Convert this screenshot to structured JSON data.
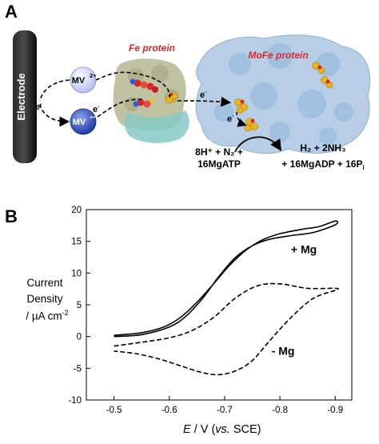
{
  "panels": {
    "a": "A",
    "b": "B"
  },
  "scheme": {
    "electrode": "Electrode",
    "fe_protein": "Fe protein",
    "mofe_protein": "MoFe protein",
    "mv_ox": "MV",
    "mv_ox_charge": "2+",
    "mv_red": "MV",
    "mv_red_charge": "+•",
    "electron": "e",
    "electron_sup": "-",
    "reactants_line1": "8H⁺ + N₂ +",
    "reactants_line2": "16MgATP",
    "products_line1": "H₂ + 2NH₃",
    "products_line2": "+ 16MgADP + 16P",
    "products_sub": "i",
    "colors": {
      "fe_label": "#d62a2a",
      "mofe_label": "#d62a2a",
      "mofe_surface": "#aac6e2",
      "fe_surface": "#b9bd98",
      "fe_surface2": "#86c9c4",
      "mv_fill": "#b6bff2",
      "mv_red_fill": "#1f3aa5"
    }
  },
  "axis_labels": {
    "y_line1": "Current",
    "y_line2": "Density",
    "y_line3": "/ µA cm",
    "y_sup": "-2",
    "x_main": "E",
    "x_unit": " / V (",
    "x_vs": "vs.",
    "x_ref": " SCE)"
  },
  "chart_data": {
    "type": "line",
    "xlabel": "E / V (vs. SCE)",
    "ylabel": "Current Density / µA cm-2",
    "xlim": [
      -0.45,
      -0.93
    ],
    "ylim": [
      -10,
      20
    ],
    "xticks": [
      -0.5,
      -0.6,
      -0.7,
      -0.8,
      -0.9
    ],
    "xtick_labels": [
      "-0.5",
      "-0.6",
      "-0.7",
      "-0.8",
      "-0.9"
    ],
    "yticks": [
      -10,
      -5,
      0,
      5,
      10,
      15,
      20
    ],
    "ytick_labels": [
      "-10",
      "-5",
      "0",
      "5",
      "10",
      "15",
      "20"
    ],
    "grid": false,
    "annotations": [
      "+ Mg",
      "- Mg"
    ],
    "series": [
      {
        "name": "+ Mg",
        "style": "solid",
        "x": [
          -0.5,
          -0.55,
          -0.6,
          -0.63,
          -0.66,
          -0.69,
          -0.72,
          -0.75,
          -0.78,
          -0.82,
          -0.86,
          -0.9,
          -0.9,
          -0.87,
          -0.84,
          -0.8,
          -0.77,
          -0.74,
          -0.71,
          -0.68,
          -0.65,
          -0.62,
          -0.59,
          -0.55,
          -0.5
        ],
        "y": [
          0.0,
          0.3,
          1.5,
          3.2,
          6.0,
          9.5,
          12.5,
          14.3,
          15.3,
          15.9,
          16.4,
          17.6,
          18.2,
          17.3,
          16.9,
          16.2,
          15.3,
          13.7,
          11.3,
          8.3,
          5.4,
          3.0,
          1.5,
          0.6,
          0.2
        ]
      },
      {
        "name": "- Mg",
        "style": "dashed",
        "x": [
          -0.5,
          -0.55,
          -0.6,
          -0.64,
          -0.68,
          -0.72,
          -0.76,
          -0.8,
          -0.85,
          -0.9,
          -0.9,
          -0.86,
          -0.82,
          -0.78,
          -0.75,
          -0.72,
          -0.69,
          -0.66,
          -0.62,
          -0.58,
          -0.54,
          -0.5
        ],
        "y": [
          -1.5,
          -0.9,
          -0.2,
          0.9,
          3.0,
          6.1,
          8.0,
          8.3,
          7.6,
          7.6,
          7.3,
          6.0,
          3.0,
          -0.8,
          -3.8,
          -5.4,
          -6.0,
          -5.7,
          -4.6,
          -3.5,
          -2.7,
          -2.3
        ]
      }
    ]
  }
}
